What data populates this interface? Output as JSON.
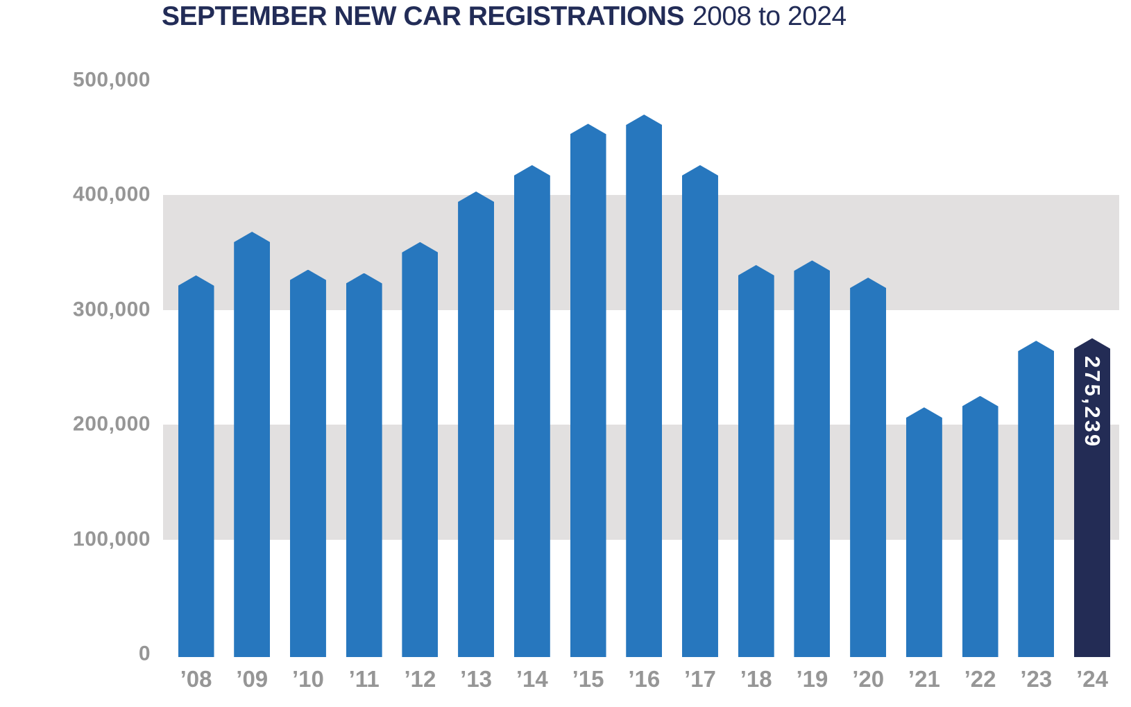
{
  "title": {
    "main": "SEPTEMBER NEW CAR REGISTRATIONS",
    "suffix": "2008 to 2024"
  },
  "colors": {
    "bar_blue": "#2777BE",
    "bar_highlight_navy": "#232C55",
    "grid_band_gray": "#E2E0E0",
    "axis_text_gray": "#969696",
    "title_navy": "#222C57",
    "bar_label_white": "#FFFFFF",
    "background": "#FFFFFF"
  },
  "chart_data": {
    "type": "bar",
    "title": "SEPTEMBER NEW CAR REGISTRATIONS",
    "subtitle": "2008 to 2024",
    "categories": [
      "’08",
      "’09",
      "’10",
      "’11",
      "’12",
      "’13",
      "’14",
      "’15",
      "’16",
      "’17",
      "’18",
      "’19",
      "’20",
      "’21",
      "’22",
      "’23",
      "’24"
    ],
    "values": [
      330000,
      368000,
      335000,
      332000,
      359000,
      403000,
      426000,
      462000,
      470000,
      426000,
      339000,
      343000,
      328000,
      215000,
      225000,
      273000,
      275239
    ],
    "ylim": [
      0,
      500000
    ],
    "y_ticks": [
      {
        "value": 500000,
        "label": "500,000"
      },
      {
        "value": 400000,
        "label": "400,000"
      },
      {
        "value": 300000,
        "label": "300,000"
      },
      {
        "value": 200000,
        "label": "200,000"
      },
      {
        "value": 100000,
        "label": "100,000"
      },
      {
        "value": 0,
        "label": "0"
      }
    ],
    "grid_bands": [
      {
        "from": 300000,
        "to": 400000
      },
      {
        "from": 100000,
        "to": 200000
      }
    ],
    "highlight": {
      "index": 16,
      "label": "275,239"
    },
    "legend": "none",
    "grid": "shaded-bands"
  }
}
